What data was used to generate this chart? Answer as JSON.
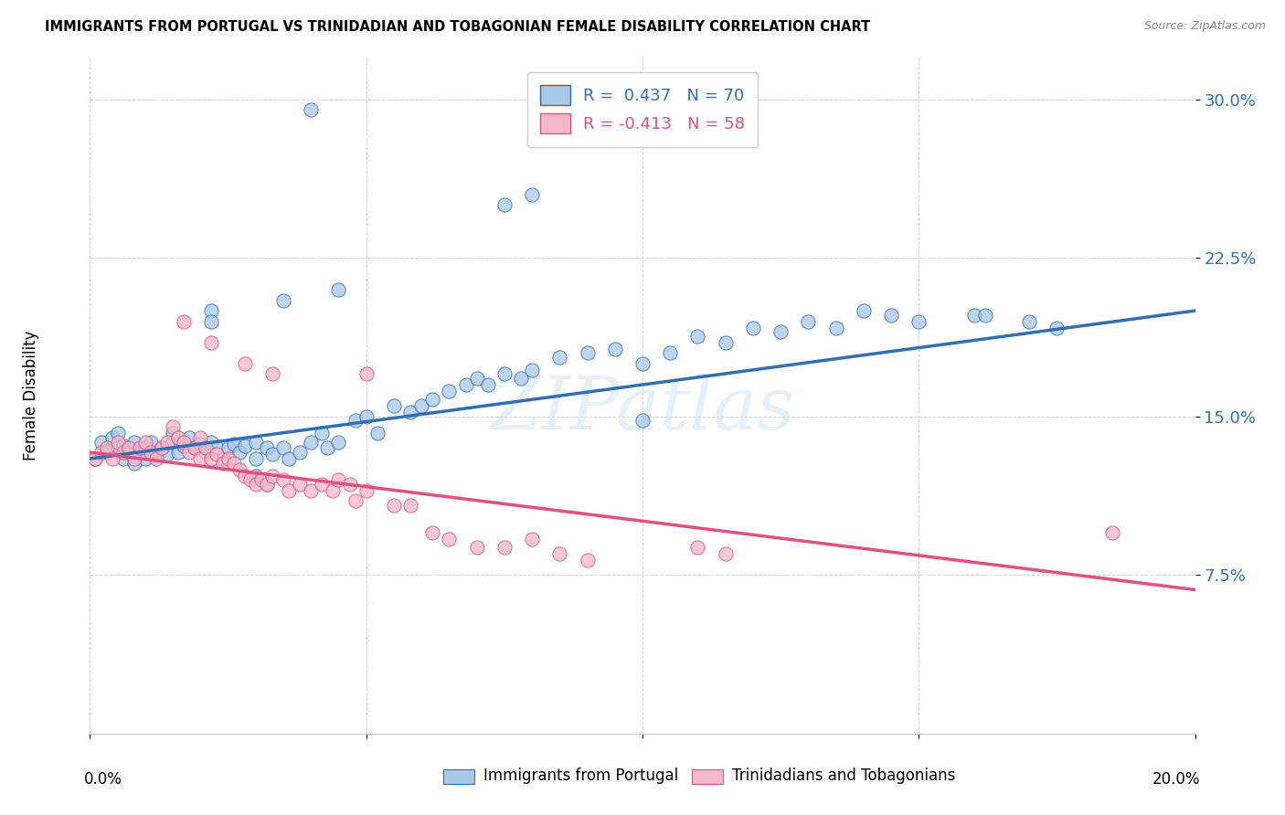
{
  "title": "IMMIGRANTS FROM PORTUGAL VS TRINIDADIAN AND TOBAGONIAN FEMALE DISABILITY CORRELATION CHART",
  "source": "Source: ZipAtlas.com",
  "ylabel": "Female Disability",
  "ytick_vals": [
    0.075,
    0.15,
    0.225,
    0.3
  ],
  "ytick_labels": [
    "7.5%",
    "15.0%",
    "22.5%",
    "30.0%"
  ],
  "xlim": [
    0.0,
    0.2
  ],
  "ylim": [
    0.0,
    0.32
  ],
  "blue_color": "#a8c8e8",
  "pink_color": "#f4b8c8",
  "blue_line_color": "#3070b0",
  "pink_line_color": "#e05080",
  "watermark": "ZIPatlas",
  "blue_line_x": [
    0.0,
    0.2
  ],
  "blue_line_y": [
    0.13,
    0.2
  ],
  "pink_line_x": [
    0.0,
    0.2
  ],
  "pink_line_y": [
    0.133,
    0.068
  ],
  "blue_scatter": [
    [
      0.001,
      0.13
    ],
    [
      0.002,
      0.138
    ],
    [
      0.003,
      0.133
    ],
    [
      0.004,
      0.14
    ],
    [
      0.005,
      0.135
    ],
    [
      0.005,
      0.142
    ],
    [
      0.006,
      0.13
    ],
    [
      0.006,
      0.136
    ],
    [
      0.007,
      0.133
    ],
    [
      0.008,
      0.128
    ],
    [
      0.008,
      0.138
    ],
    [
      0.009,
      0.133
    ],
    [
      0.01,
      0.135
    ],
    [
      0.01,
      0.13
    ],
    [
      0.011,
      0.138
    ],
    [
      0.012,
      0.133
    ],
    [
      0.013,
      0.135
    ],
    [
      0.014,
      0.132
    ],
    [
      0.015,
      0.138
    ],
    [
      0.015,
      0.142
    ],
    [
      0.016,
      0.133
    ],
    [
      0.017,
      0.136
    ],
    [
      0.018,
      0.14
    ],
    [
      0.019,
      0.135
    ],
    [
      0.02,
      0.137
    ],
    [
      0.021,
      0.133
    ],
    [
      0.022,
      0.138
    ],
    [
      0.023,
      0.135
    ],
    [
      0.024,
      0.13
    ],
    [
      0.025,
      0.135
    ],
    [
      0.026,
      0.137
    ],
    [
      0.027,
      0.133
    ],
    [
      0.028,
      0.136
    ],
    [
      0.03,
      0.138
    ],
    [
      0.03,
      0.13
    ],
    [
      0.032,
      0.135
    ],
    [
      0.033,
      0.132
    ],
    [
      0.035,
      0.135
    ],
    [
      0.036,
      0.13
    ],
    [
      0.038,
      0.133
    ],
    [
      0.04,
      0.138
    ],
    [
      0.042,
      0.142
    ],
    [
      0.043,
      0.135
    ],
    [
      0.045,
      0.138
    ],
    [
      0.048,
      0.148
    ],
    [
      0.05,
      0.15
    ],
    [
      0.052,
      0.142
    ],
    [
      0.055,
      0.155
    ],
    [
      0.058,
      0.152
    ],
    [
      0.06,
      0.155
    ],
    [
      0.062,
      0.158
    ],
    [
      0.065,
      0.162
    ],
    [
      0.068,
      0.165
    ],
    [
      0.07,
      0.168
    ],
    [
      0.072,
      0.165
    ],
    [
      0.075,
      0.17
    ],
    [
      0.078,
      0.168
    ],
    [
      0.08,
      0.172
    ],
    [
      0.085,
      0.178
    ],
    [
      0.09,
      0.18
    ],
    [
      0.095,
      0.182
    ],
    [
      0.1,
      0.175
    ],
    [
      0.105,
      0.18
    ],
    [
      0.11,
      0.188
    ],
    [
      0.115,
      0.185
    ],
    [
      0.12,
      0.192
    ],
    [
      0.125,
      0.19
    ],
    [
      0.13,
      0.195
    ],
    [
      0.135,
      0.192
    ],
    [
      0.14,
      0.2
    ],
    [
      0.145,
      0.198
    ],
    [
      0.15,
      0.195
    ],
    [
      0.16,
      0.198
    ],
    [
      0.162,
      0.198
    ],
    [
      0.17,
      0.195
    ],
    [
      0.175,
      0.192
    ],
    [
      0.022,
      0.2
    ],
    [
      0.022,
      0.195
    ],
    [
      0.035,
      0.205
    ],
    [
      0.045,
      0.21
    ],
    [
      0.03,
      0.122
    ],
    [
      0.032,
      0.118
    ],
    [
      0.04,
      0.295
    ],
    [
      0.075,
      0.25
    ],
    [
      0.08,
      0.255
    ],
    [
      0.1,
      0.148
    ]
  ],
  "pink_scatter": [
    [
      0.001,
      0.13
    ],
    [
      0.002,
      0.133
    ],
    [
      0.003,
      0.135
    ],
    [
      0.004,
      0.13
    ],
    [
      0.005,
      0.138
    ],
    [
      0.006,
      0.133
    ],
    [
      0.007,
      0.135
    ],
    [
      0.008,
      0.13
    ],
    [
      0.009,
      0.135
    ],
    [
      0.01,
      0.138
    ],
    [
      0.011,
      0.133
    ],
    [
      0.012,
      0.13
    ],
    [
      0.013,
      0.135
    ],
    [
      0.014,
      0.138
    ],
    [
      0.015,
      0.145
    ],
    [
      0.016,
      0.14
    ],
    [
      0.017,
      0.138
    ],
    [
      0.018,
      0.133
    ],
    [
      0.019,
      0.135
    ],
    [
      0.02,
      0.14
    ],
    [
      0.02,
      0.13
    ],
    [
      0.021,
      0.135
    ],
    [
      0.022,
      0.13
    ],
    [
      0.023,
      0.132
    ],
    [
      0.024,
      0.128
    ],
    [
      0.025,
      0.13
    ],
    [
      0.026,
      0.128
    ],
    [
      0.027,
      0.125
    ],
    [
      0.028,
      0.122
    ],
    [
      0.029,
      0.12
    ],
    [
      0.03,
      0.118
    ],
    [
      0.031,
      0.12
    ],
    [
      0.032,
      0.118
    ],
    [
      0.033,
      0.122
    ],
    [
      0.035,
      0.12
    ],
    [
      0.036,
      0.115
    ],
    [
      0.038,
      0.118
    ],
    [
      0.04,
      0.115
    ],
    [
      0.042,
      0.118
    ],
    [
      0.044,
      0.115
    ],
    [
      0.045,
      0.12
    ],
    [
      0.047,
      0.118
    ],
    [
      0.048,
      0.11
    ],
    [
      0.05,
      0.115
    ],
    [
      0.017,
      0.195
    ],
    [
      0.022,
      0.185
    ],
    [
      0.028,
      0.175
    ],
    [
      0.033,
      0.17
    ],
    [
      0.05,
      0.17
    ],
    [
      0.055,
      0.108
    ],
    [
      0.058,
      0.108
    ],
    [
      0.062,
      0.095
    ],
    [
      0.065,
      0.092
    ],
    [
      0.07,
      0.088
    ],
    [
      0.075,
      0.088
    ],
    [
      0.08,
      0.092
    ],
    [
      0.085,
      0.085
    ],
    [
      0.09,
      0.082
    ],
    [
      0.11,
      0.088
    ],
    [
      0.115,
      0.085
    ],
    [
      0.185,
      0.095
    ]
  ]
}
